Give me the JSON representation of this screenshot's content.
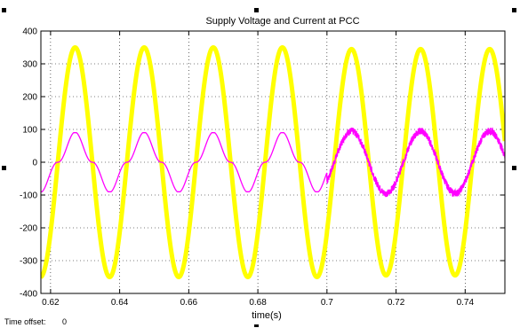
{
  "chart_data": {
    "type": "line",
    "title": "Supply Voltage and Current at PCC",
    "xlabel": "time(s)",
    "ylabel": "",
    "xlim": [
      0.6172,
      0.7515
    ],
    "ylim": [
      -400,
      400
    ],
    "x_ticks": [
      "0.62",
      "0.64",
      "0.66",
      "0.68",
      "0.7",
      "0.72",
      "0.74"
    ],
    "y_ticks": [
      "400",
      "300",
      "200",
      "100",
      "0",
      "-100",
      "-200",
      "-300",
      "-400"
    ],
    "grid": true,
    "series": [
      {
        "color": "#ffff00",
        "description": "supply voltage, 50 Hz sinusoid",
        "amplitude_before": 350,
        "amplitude_after": 345,
        "peaks": [
          {
            "x": 0.6271,
            "y": 352
          },
          {
            "x": 0.6465,
            "y": 352
          },
          {
            "x": 0.6662,
            "y": 352
          },
          {
            "x": 0.6857,
            "y": 352
          },
          {
            "x": 0.705,
            "y": 348
          },
          {
            "x": 0.7255,
            "y": 340
          },
          {
            "x": 0.7455,
            "y": 342
          }
        ],
        "troughs": [
          {
            "x": 0.6175,
            "y": -350
          },
          {
            "x": 0.637,
            "y": -353
          },
          {
            "x": 0.6562,
            "y": -353
          },
          {
            "x": 0.676,
            "y": -353
          },
          {
            "x": 0.6957,
            "y": -353
          },
          {
            "x": 0.7155,
            "y": -343
          },
          {
            "x": 0.7355,
            "y": -348
          }
        ]
      },
      {
        "color": "#ff00ff",
        "description": "supply current; distorted before t = 0.7, sinusoidal with ripple after",
        "peak_before": 90,
        "amplitude_after": 95,
        "step_time": 0.7
      }
    ]
  },
  "time_offset": {
    "label": "Time offset:",
    "value": "0"
  }
}
